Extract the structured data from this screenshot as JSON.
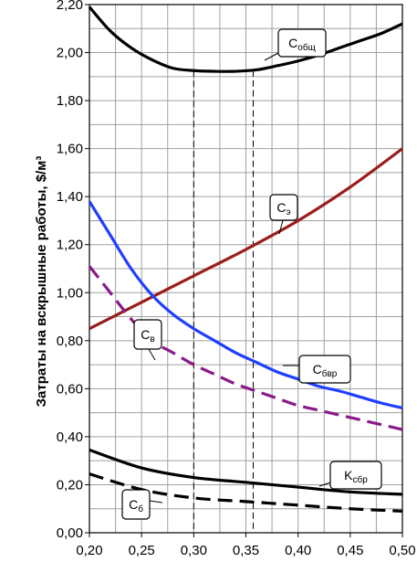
{
  "chart_data": {
    "type": "line",
    "ylabel": "Затраты на вскрышные работы, $/м³",
    "xlabel": "",
    "xlim": [
      0.2,
      0.5
    ],
    "ylim": [
      0.0,
      2.2
    ],
    "x_ticks": [
      "0,20",
      "0,25",
      "0,30",
      "0,35",
      "0,40",
      "0,45",
      "0,50"
    ],
    "y_ticks": [
      "0,00",
      "0,20",
      "0,40",
      "0,60",
      "0,80",
      "1,00",
      "1,20",
      "1,40",
      "1,60",
      "1,80",
      "2,00",
      "2,20"
    ],
    "grid": true,
    "vlines": [
      0.3,
      0.357
    ],
    "series": [
      {
        "name": "Cобщ",
        "main": "C",
        "sub": "общ",
        "color": "#000000",
        "dash": false,
        "x": [
          0.2,
          0.22,
          0.24,
          0.26,
          0.28,
          0.3,
          0.32,
          0.34,
          0.36,
          0.38,
          0.4,
          0.42,
          0.44,
          0.46,
          0.48,
          0.5
        ],
        "y": [
          2.19,
          2.09,
          2.02,
          1.97,
          1.935,
          1.925,
          1.922,
          1.922,
          1.928,
          1.945,
          1.965,
          1.99,
          2.02,
          2.05,
          2.08,
          2.12
        ]
      },
      {
        "name": "Cэ",
        "main": "C",
        "sub": "э",
        "color": "#9b1c1c",
        "dash": false,
        "x": [
          0.2,
          0.25,
          0.3,
          0.35,
          0.4,
          0.45,
          0.5
        ],
        "y": [
          0.85,
          0.96,
          1.07,
          1.18,
          1.3,
          1.44,
          1.6
        ]
      },
      {
        "name": "Cбвр",
        "main": "C",
        "sub": "бвр",
        "color": "#1f3fff",
        "dash": false,
        "x": [
          0.2,
          0.22,
          0.24,
          0.26,
          0.28,
          0.3,
          0.32,
          0.34,
          0.36,
          0.38,
          0.4,
          0.42,
          0.44,
          0.46,
          0.48,
          0.5
        ],
        "y": [
          1.38,
          1.24,
          1.1,
          0.99,
          0.91,
          0.85,
          0.8,
          0.75,
          0.71,
          0.67,
          0.64,
          0.61,
          0.59,
          0.565,
          0.54,
          0.52
        ]
      },
      {
        "name": "Cв",
        "main": "C",
        "sub": "в",
        "color": "#8a1a8a",
        "dash": true,
        "x": [
          0.2,
          0.22,
          0.24,
          0.26,
          0.28,
          0.3,
          0.32,
          0.34,
          0.36,
          0.38,
          0.4,
          0.42,
          0.44,
          0.46,
          0.48,
          0.5
        ],
        "y": [
          1.11,
          1.0,
          0.89,
          0.8,
          0.75,
          0.7,
          0.66,
          0.62,
          0.59,
          0.56,
          0.53,
          0.51,
          0.49,
          0.47,
          0.45,
          0.43
        ]
      },
      {
        "name": "Kсбр",
        "main": "K",
        "sub": "сбр",
        "color": "#000000",
        "dash": false,
        "x": [
          0.2,
          0.25,
          0.3,
          0.35,
          0.4,
          0.45,
          0.5
        ],
        "y": [
          0.345,
          0.27,
          0.23,
          0.21,
          0.19,
          0.17,
          0.16
        ]
      },
      {
        "name": "Cб",
        "main": "C",
        "sub": "б",
        "color": "#000000",
        "dash": true,
        "x": [
          0.2,
          0.25,
          0.3,
          0.35,
          0.4,
          0.45,
          0.5
        ],
        "y": [
          0.245,
          0.18,
          0.145,
          0.13,
          0.115,
          0.1,
          0.09
        ]
      }
    ]
  }
}
